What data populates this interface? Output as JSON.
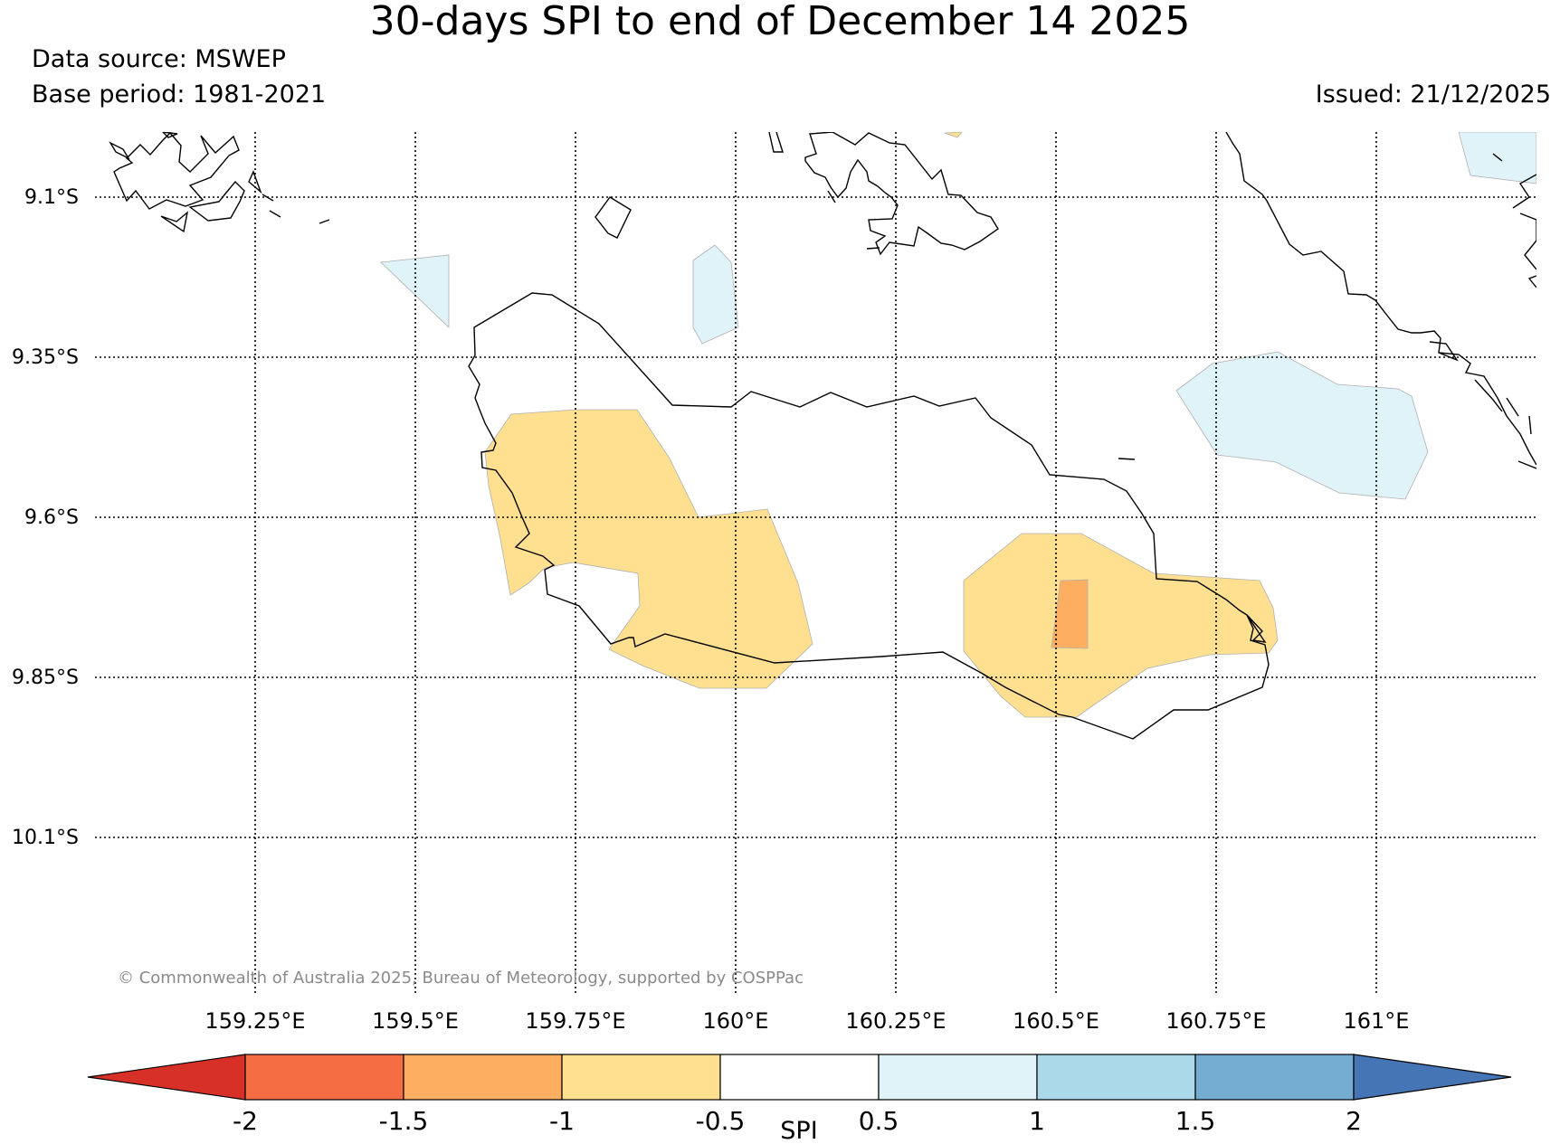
{
  "title": "30-days SPI to end of December 14 2025",
  "data_source": "Data source: MSWEP",
  "base_period": "Base period: 1981-2021",
  "issued": "Issued: 21/12/2025",
  "copyright": "© Commonwealth of Australia 2025, Bureau of Meteorology, supported by COSPPac",
  "lat_labels": [
    "9.1°S",
    "9.35°S",
    "9.6°S",
    "9.85°S",
    "10.1°S"
  ],
  "lon_labels": [
    "159.25°E",
    "159.5°E",
    "159.75°E",
    "160°E",
    "160.25°E",
    "160.5°E",
    "160.75°E",
    "161°E"
  ],
  "colorbar": {
    "label": "SPI",
    "ticks": [
      "-2",
      "-1.5",
      "-1",
      "-0.5",
      "0.5",
      "1",
      "1.5",
      "2"
    ],
    "colors": [
      "#d73027",
      "#f46d43",
      "#fdae61",
      "#fee090",
      "#ffffff",
      "#e0f3f8",
      "#abd9e9",
      "#74add1",
      "#4575b4"
    ]
  },
  "colors": {
    "dry_moderate": "#fee090",
    "dry_severe": "#fdae61",
    "wet_moderate": "#e0f3f8",
    "coastline": "#000000",
    "gridline": "#000000"
  }
}
